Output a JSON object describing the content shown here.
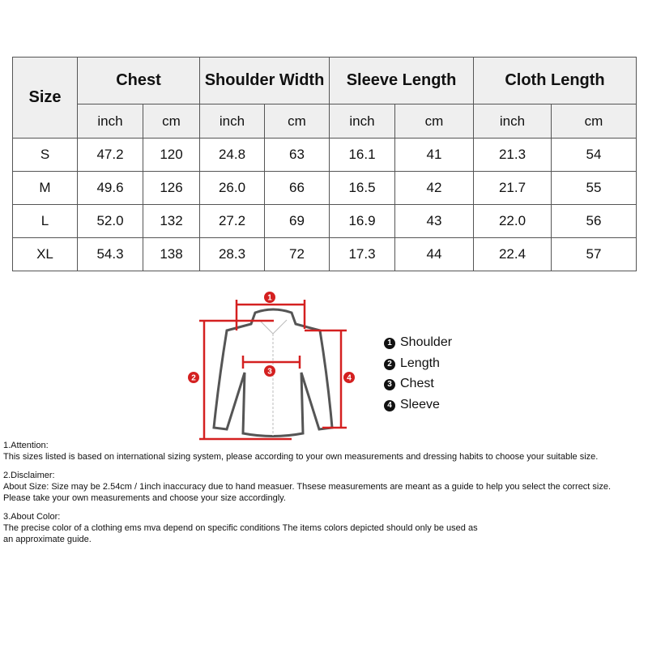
{
  "table": {
    "headers": [
      "Size",
      "Chest",
      "Shoulder Width",
      "Sleeve Length",
      "Cloth Length"
    ],
    "units": [
      "inch",
      "cm",
      "inch",
      "cm",
      "inch",
      "cm",
      "inch",
      "cm"
    ],
    "rows": [
      [
        "S",
        "47.2",
        "120",
        "24.8",
        "63",
        "16.1",
        "41",
        "21.3",
        "54"
      ],
      [
        "M",
        "49.6",
        "126",
        "26.0",
        "66",
        "16.5",
        "42",
        "21.7",
        "55"
      ],
      [
        "L",
        "52.0",
        "132",
        "27.2",
        "69",
        "16.9",
        "43",
        "22.0",
        "56"
      ],
      [
        "XL",
        "54.3",
        "138",
        "28.3",
        "72",
        "17.3",
        "44",
        "22.4",
        "57"
      ]
    ]
  },
  "diagram": {
    "markers": [
      "1",
      "2",
      "3",
      "4"
    ],
    "accent": "#d42020"
  },
  "legend": [
    {
      "num": "1",
      "label": "Shoulder"
    },
    {
      "num": "2",
      "label": "Length"
    },
    {
      "num": "3",
      "label": "Chest"
    },
    {
      "num": "4",
      "label": "Sleeve"
    }
  ],
  "notes": [
    {
      "title": "1.Attention:",
      "lines": [
        "This sizes listed is based on international sizing system, please according to your own measurements and dressing habits to choose your suitable size."
      ]
    },
    {
      "title": "2.Disclaimer:",
      "lines": [
        "About Size: Size may be 2.54cm / 1inch inaccuracy due to hand measuer. Thsese measurements are meant as a guide to help you select the correct size.",
        "Please take your own measurements and choose your size accordingly."
      ]
    },
    {
      "title": "3.About Color:",
      "lines": [
        "The precise color of a clothing ems mva depend on specific conditions The items colors depicted should only be used as",
        "an approximate guide."
      ]
    }
  ]
}
